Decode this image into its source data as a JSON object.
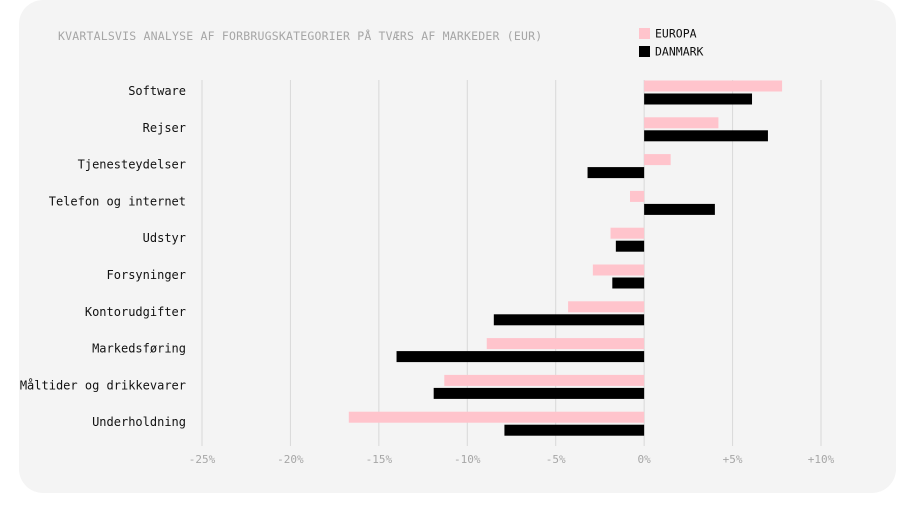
{
  "chart_data": {
    "type": "bar",
    "orientation": "horizontal",
    "title": "KVARTALSVIS ANALYSE AF FORBRUGSKATEGORIER PÅ TVÆRS AF MARKEDER (EUR)",
    "categories": [
      "Software",
      "Rejser",
      "Tjenesteydelser",
      "Telefon og internet",
      "Udstyr",
      "Forsyninger",
      "Kontorudgifter",
      "Markedsføring",
      "Måltider og drikkevarer",
      "Underholdning"
    ],
    "series": [
      {
        "name": "EUROPA",
        "color": "#ffc4cc",
        "values": [
          7.8,
          4.2,
          1.5,
          -0.8,
          -1.9,
          -2.9,
          -4.3,
          -8.9,
          -11.3,
          -16.7
        ]
      },
      {
        "name": "DANMARK",
        "color": "#000000",
        "values": [
          6.1,
          7.0,
          -3.2,
          4.0,
          -1.6,
          -1.8,
          -8.5,
          -14.0,
          -11.9,
          -7.9
        ]
      }
    ],
    "xlim": [
      -25,
      10
    ],
    "xticks": [
      -25,
      -20,
      -15,
      -10,
      -5,
      0,
      5,
      10
    ],
    "xtick_labels": [
      "-25%",
      "-20%",
      "-15%",
      "-10%",
      "-5%",
      "0%",
      "+5%",
      "+10%"
    ],
    "grid": true,
    "legend_position": "top-right"
  }
}
